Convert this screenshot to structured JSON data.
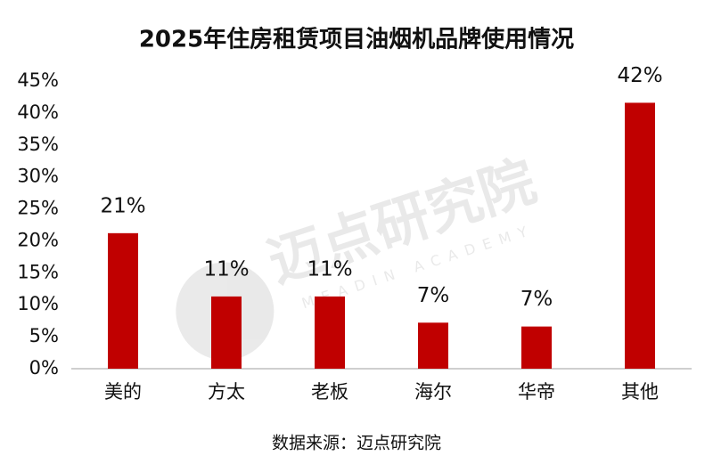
{
  "chart_data": {
    "type": "bar",
    "title": "2025年住房租赁项目油烟机品牌使用情况",
    "categories": [
      "美的",
      "方太",
      "老板",
      "海尔",
      "华帝",
      "其他"
    ],
    "values": [
      21.2,
      11.3,
      11.3,
      7.2,
      6.6,
      41.6
    ],
    "value_labels": [
      "21%",
      "11%",
      "11%",
      "7%",
      "7%",
      "42%"
    ],
    "color": "#c00000",
    "ylim": [
      0,
      45
    ],
    "yticks": [
      {
        "value": 0,
        "label": "0%"
      },
      {
        "value": 5,
        "label": "5%"
      },
      {
        "value": 10,
        "label": "10%"
      },
      {
        "value": 15,
        "label": "15%"
      },
      {
        "value": 20,
        "label": "20%"
      },
      {
        "value": 25,
        "label": "25%"
      },
      {
        "value": 30,
        "label": "30%"
      },
      {
        "value": 35,
        "label": "35%"
      },
      {
        "value": 40,
        "label": "40%"
      },
      {
        "value": 45,
        "label": "45%"
      }
    ],
    "grid": false,
    "source": "数据来源：迈点研究院",
    "watermark": "迈点研究院",
    "watermark_sub": "MEADIN ACADEMY"
  }
}
